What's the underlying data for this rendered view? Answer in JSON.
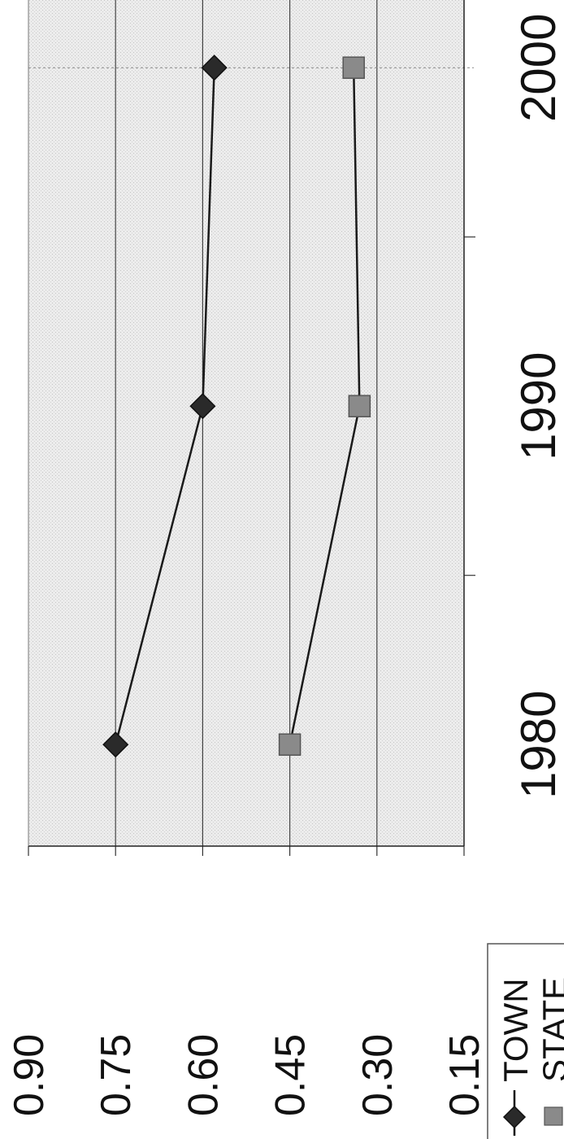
{
  "chart_data": {
    "type": "line",
    "x": [
      1980,
      1990,
      2000
    ],
    "xlim": [
      1977,
      2002
    ],
    "x_ticks": [
      "1980",
      "1990",
      "2000"
    ],
    "ylim": [
      0.15,
      0.9
    ],
    "y_ticks": [
      "0.90",
      "0.75",
      "0.60",
      "0.45",
      "0.30",
      "0.15"
    ],
    "grid": true,
    "legend_position": "bottom-right",
    "orientation": "rotated 90 degrees clockwise",
    "series": [
      {
        "name": "TOWN",
        "marker": "diamond",
        "color": "#2a2a2a",
        "values": [
          0.75,
          0.6,
          0.58
        ]
      },
      {
        "name": "STATE",
        "marker": "square",
        "color": "#8a8a8a",
        "values": [
          0.45,
          0.33,
          0.34
        ]
      }
    ]
  }
}
